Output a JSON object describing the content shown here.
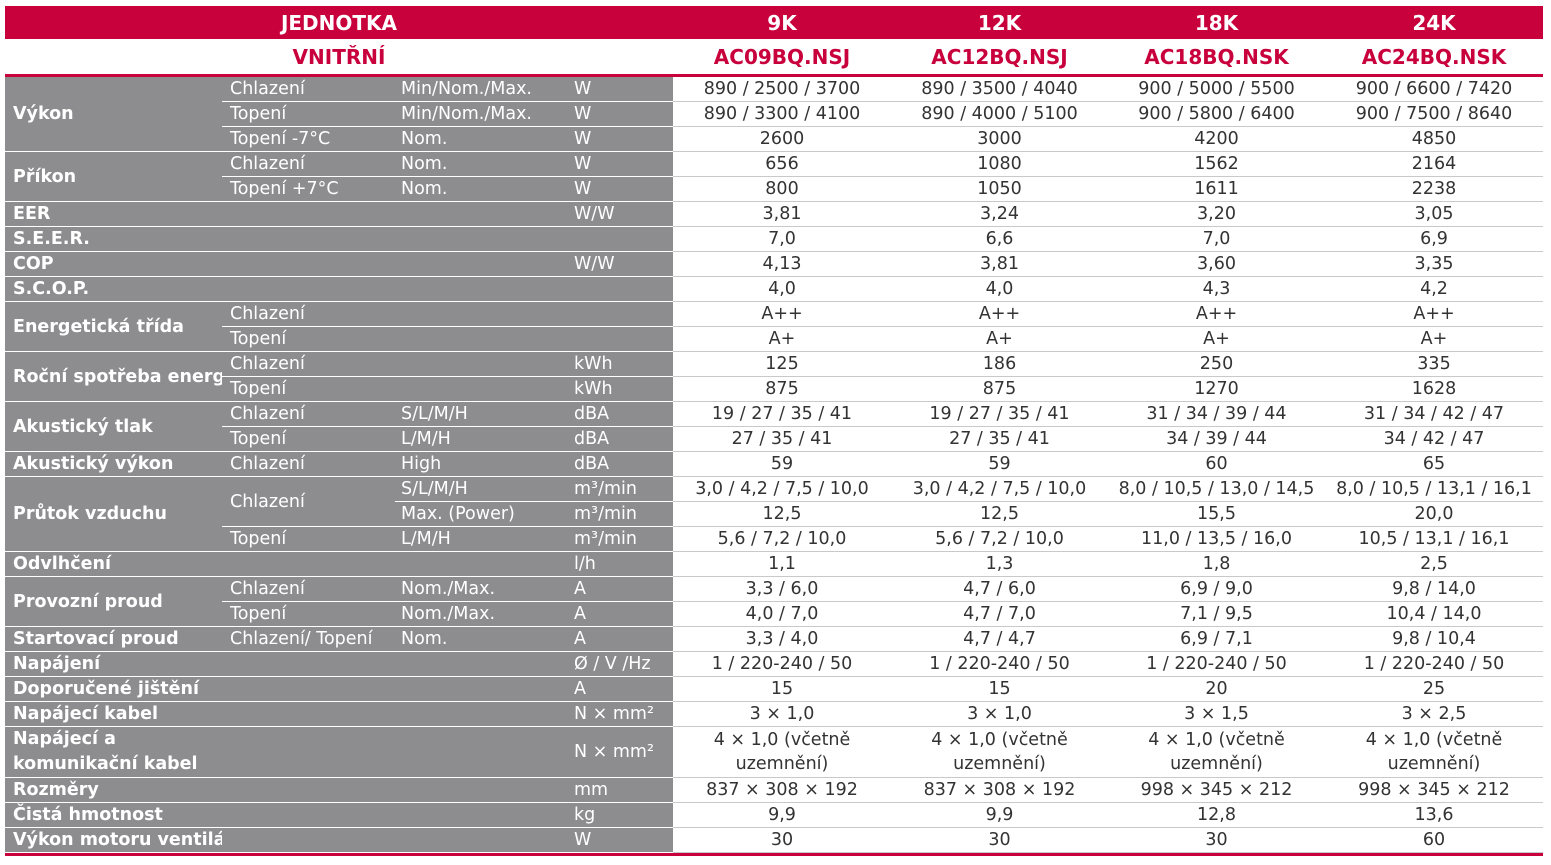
{
  "header": {
    "unit_label": "JEDNOTKA",
    "indoor_label": "VNITŘNÍ",
    "models": [
      {
        "capacity": "9K",
        "code": "AC09BQ.NSJ"
      },
      {
        "capacity": "12K",
        "code": "AC12BQ.NSJ"
      },
      {
        "capacity": "18K",
        "code": "AC18BQ.NSK"
      },
      {
        "capacity": "24K",
        "code": "AC24BQ.NSK"
      }
    ]
  },
  "rows": [
    {
      "group": "Výkon",
      "span": 3,
      "sub": "Chlazení",
      "cond": "Min/Nom./Max.",
      "unit": "W",
      "vals": [
        "890 / 2500 / 3700",
        "890 / 3500 / 4040",
        "900 / 5000 / 5500",
        "900 / 6600 / 7420"
      ]
    },
    {
      "sub": "Topení",
      "cond": "Min/Nom./Max.",
      "unit": "W",
      "vals": [
        "890 / 3300 / 4100",
        "890 / 4000 / 5100",
        "900 / 5800 / 6400",
        "900 / 7500 / 8640"
      ]
    },
    {
      "sub": "Topení -7°C",
      "cond": "Nom.",
      "unit": "W",
      "vals": [
        "2600",
        "3000",
        "4200",
        "4850"
      ]
    },
    {
      "group": "Příkon",
      "span": 2,
      "sub": "Chlazení",
      "cond": "Nom.",
      "unit": "W",
      "vals": [
        "656",
        "1080",
        "1562",
        "2164"
      ]
    },
    {
      "sub": "Topení +7°C",
      "cond": "Nom.",
      "unit": "W",
      "vals": [
        "800",
        "1050",
        "1611",
        "2238"
      ]
    },
    {
      "group": "EER",
      "span": 1,
      "sub": "",
      "cond": "",
      "unit": "W/W",
      "vals": [
        "3,81",
        "3,24",
        "3,20",
        "3,05"
      ]
    },
    {
      "group": "S.E.E.R.",
      "span": 1,
      "sub": "",
      "cond": "",
      "unit": "",
      "vals": [
        "7,0",
        "6,6",
        "7,0",
        "6,9"
      ]
    },
    {
      "group": "COP",
      "span": 1,
      "sub": "",
      "cond": "",
      "unit": "W/W",
      "vals": [
        "4,13",
        "3,81",
        "3,60",
        "3,35"
      ]
    },
    {
      "group": "S.C.O.P.",
      "span": 1,
      "sub": "",
      "cond": "",
      "unit": "",
      "vals": [
        "4,0",
        "4,0",
        "4,3",
        "4,2"
      ]
    },
    {
      "group": "Energetická třída",
      "span": 2,
      "sub": "Chlazení",
      "cond": "",
      "unit": "",
      "vals": [
        "A++",
        "A++",
        "A++",
        "A++"
      ]
    },
    {
      "sub": "Topení",
      "cond": "",
      "unit": "",
      "vals": [
        "A+",
        "A+",
        "A+",
        "A+"
      ]
    },
    {
      "group": "Roční spotřeba energie",
      "span": 2,
      "sub": "Chlazení",
      "cond": "",
      "unit": "kWh",
      "vals": [
        "125",
        "186",
        "250",
        "335"
      ]
    },
    {
      "sub": "Topení",
      "cond": "",
      "unit": "kWh",
      "vals": [
        "875",
        "875",
        "1270",
        "1628"
      ]
    },
    {
      "group": "Akustický tlak",
      "span": 2,
      "sub": "Chlazení",
      "cond": "S/L/M/H",
      "unit": "dBA",
      "vals": [
        "19 / 27 / 35 / 41",
        "19 / 27 / 35 / 41",
        "31 / 34 / 39 / 44",
        "31 / 34 / 42 / 47"
      ]
    },
    {
      "sub": "Topení",
      "cond": "L/M/H",
      "unit": "dBA",
      "vals": [
        "27 / 35 / 41",
        "27 / 35 / 41",
        "34 / 39 / 44",
        "34 / 42 / 47"
      ]
    },
    {
      "group": "Akustický výkon",
      "span": 1,
      "sub": "Chlazení",
      "cond": "High",
      "unit": "dBA",
      "vals": [
        "59",
        "59",
        "60",
        "65"
      ]
    },
    {
      "group": "Průtok vzduchu",
      "span": 3,
      "sub": "Chlazení",
      "subspan": 2,
      "cond": "S/L/M/H",
      "unit": "m³/min",
      "vals": [
        "3,0 / 4,2 / 7,5 / 10,0",
        "3,0 / 4,2 / 7,5 / 10,0",
        "8,0 / 10,5 / 13,0 / 14,5",
        "8,0 / 10,5 / 13,1 / 16,1"
      ]
    },
    {
      "cond": "Max. (Power)",
      "unit": "m³/min",
      "vals": [
        "12,5",
        "12,5",
        "15,5",
        "20,0"
      ]
    },
    {
      "sub": "Topení",
      "cond": "L/M/H",
      "unit": "m³/min",
      "vals": [
        "5,6 / 7,2 / 10,0",
        "5,6 / 7,2 / 10,0",
        "11,0 / 13,5 / 16,0",
        "10,5 / 13,1 / 16,1"
      ]
    },
    {
      "group": "Odvlhčení",
      "span": 1,
      "sub": "",
      "cond": "",
      "unit": "l/h",
      "vals": [
        "1,1",
        "1,3",
        "1,8",
        "2,5"
      ]
    },
    {
      "group": "Provozní proud",
      "span": 2,
      "sub": "Chlazení",
      "cond": "Nom./Max.",
      "unit": "A",
      "vals": [
        "3,3 / 6,0",
        "4,7 / 6,0",
        "6,9 / 9,0",
        "9,8 / 14,0"
      ]
    },
    {
      "sub": "Topení",
      "cond": "Nom./Max.",
      "unit": "A",
      "vals": [
        "4,0 / 7,0",
        "4,7 / 7,0",
        "7,1 / 9,5",
        "10,4 / 14,0"
      ]
    },
    {
      "group": "Startovací proud",
      "span": 1,
      "sub": "Chlazení/ Topení",
      "cond": "Nom.",
      "unit": "A",
      "vals": [
        "3,3 / 4,0",
        "4,7 / 4,7",
        "6,9 / 7,1",
        "9,8 / 10,4"
      ]
    },
    {
      "group": "Napájení",
      "span": 1,
      "sub": "",
      "cond": "",
      "unit": "Ø / V /Hz",
      "vals": [
        "1 / 220-240 / 50",
        "1 / 220-240 / 50",
        "1 / 220-240 / 50",
        "1 / 220-240 / 50"
      ]
    },
    {
      "group": "Doporučené jištění",
      "span": 1,
      "sub": "",
      "cond": "",
      "unit": "A",
      "vals": [
        "15",
        "15",
        "20",
        "25"
      ]
    },
    {
      "group": "Napájecí kabel",
      "span": 1,
      "sub": "",
      "cond": "",
      "unit": "N × mm²",
      "vals": [
        "3 × 1,0",
        "3 × 1,0",
        "3 × 1,5",
        "3 × 2,5"
      ]
    },
    {
      "group": "Napájecí a komunikační kabel",
      "span": 1,
      "tall": true,
      "sub": "",
      "cond": "",
      "unit": "N × mm²",
      "vals": [
        "4 × 1,0 (včetně uzemnění)",
        "4 × 1,0 (včetně uzemnění)",
        "4 × 1,0 (včetně uzemnění)",
        "4 × 1,0 (včetně uzemnění)"
      ]
    },
    {
      "group": "Rozměry",
      "span": 1,
      "sub": "",
      "cond": "",
      "unit": "mm",
      "vals": [
        "837 × 308 × 192",
        "837 × 308 × 192",
        "998 × 345 × 212",
        "998 × 345 × 212"
      ]
    },
    {
      "group": "Čistá hmotnost",
      "span": 1,
      "sub": "",
      "cond": "",
      "unit": "kg",
      "vals": [
        "9,9",
        "9,9",
        "12,8",
        "13,6"
      ]
    },
    {
      "group": "Výkon motoru ventilátoru",
      "span": 1,
      "sub": "",
      "cond": "",
      "unit": "W",
      "vals": [
        "30",
        "30",
        "30",
        "60"
      ]
    }
  ]
}
